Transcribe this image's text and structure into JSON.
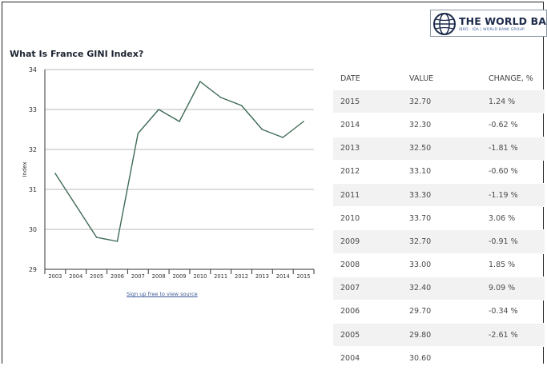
{
  "brand": {
    "name": "THE WORLD BANK",
    "subtitle": "IBRD · IDA | WORLD BANK GROUP"
  },
  "chart_data": {
    "type": "line",
    "title": "What Is France GINI Index?",
    "xlabel": "",
    "ylabel": "Index",
    "categories": [
      "2003",
      "2004",
      "2005",
      "2006",
      "2007",
      "2008",
      "2009",
      "2010",
      "2011",
      "2012",
      "2013",
      "2014",
      "2015"
    ],
    "series": [
      {
        "name": "",
        "values": [
          31.4,
          30.6,
          29.8,
          29.7,
          32.4,
          33.0,
          32.7,
          33.7,
          33.3,
          33.1,
          32.5,
          32.3,
          32.7
        ]
      }
    ],
    "ylim": [
      29,
      34
    ],
    "yticks": [
      29,
      30,
      31,
      32,
      33,
      34
    ],
    "grid": true,
    "line_color": "#3e6b55"
  },
  "source_link": "Sign up free to view source",
  "table": {
    "headers": [
      "DATE",
      "VALUE",
      "CHANGE, %"
    ],
    "rows": [
      [
        "2015",
        "32.70",
        "1.24 %"
      ],
      [
        "2014",
        "32.30",
        "-0.62 %"
      ],
      [
        "2013",
        "32.50",
        "-1.81 %"
      ],
      [
        "2012",
        "33.10",
        "-0.60 %"
      ],
      [
        "2011",
        "33.30",
        "-1.19 %"
      ],
      [
        "2010",
        "33.70",
        "3.06 %"
      ],
      [
        "2009",
        "32.70",
        "-0.91 %"
      ],
      [
        "2008",
        "33.00",
        "1.85 %"
      ],
      [
        "2007",
        "32.40",
        "9.09 %"
      ],
      [
        "2006",
        "29.70",
        "-0.34 %"
      ],
      [
        "2005",
        "29.80",
        "-2.61 %"
      ],
      [
        "2004",
        "30.60",
        ""
      ]
    ]
  }
}
